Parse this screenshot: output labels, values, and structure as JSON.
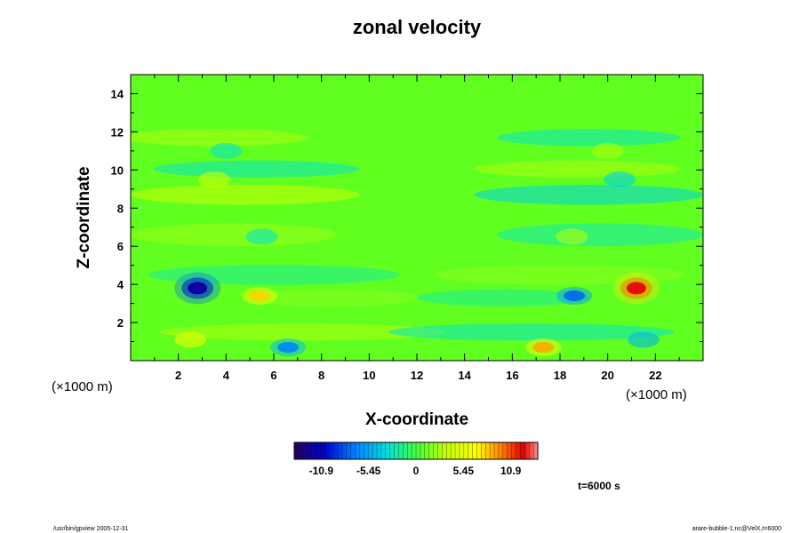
{
  "chart_data": {
    "type": "heatmap",
    "title": "zonal velocity",
    "xlabel": "X-coordinate",
    "ylabel": "Z-coordinate",
    "x_unit": "(×1000 m)",
    "y_unit": "(×1000 m)",
    "xlim": [
      0,
      24
    ],
    "ylim": [
      0,
      15
    ],
    "x_ticks": [
      2,
      4,
      6,
      8,
      10,
      12,
      14,
      16,
      18,
      20,
      22
    ],
    "y_ticks": [
      2,
      4,
      6,
      8,
      10,
      12,
      14
    ],
    "grid": false,
    "colorbar": {
      "range": [
        -14,
        14
      ],
      "tick_values": [
        -10.9,
        -5.45,
        0,
        5.45,
        10.9
      ],
      "tick_labels": [
        "-10.9",
        "-5.45",
        "0",
        "5.45",
        "10.9"
      ]
    },
    "features": [
      {
        "x": 2.8,
        "z": 3.8,
        "value": -12
      },
      {
        "x": 21.2,
        "z": 3.8,
        "value": 12
      },
      {
        "x": 5.4,
        "z": 3.4,
        "value": 8
      },
      {
        "x": 18.6,
        "z": 3.4,
        "value": -8
      },
      {
        "x": 2.5,
        "z": 1.1,
        "value": 6
      },
      {
        "x": 21.5,
        "z": 1.1,
        "value": -5
      },
      {
        "x": 6.6,
        "z": 0.7,
        "value": -7
      },
      {
        "x": 17.3,
        "z": 0.7,
        "value": 9
      },
      {
        "x": 3.5,
        "z": 9.5,
        "value": 4
      },
      {
        "x": 20.5,
        "z": 9.5,
        "value": -4
      },
      {
        "x": 4.0,
        "z": 11.0,
        "value": -3
      },
      {
        "x": 20.0,
        "z": 11.0,
        "value": 3
      },
      {
        "x": 5.5,
        "z": 6.5,
        "value": -3
      },
      {
        "x": 18.5,
        "z": 6.5,
        "value": 3
      }
    ],
    "time_label": "t=6000 s"
  },
  "footer": {
    "left": "/usr/bin/gpview 2005-12-31",
    "right": "arare-bubble-1.nc@VelX,t=6000"
  }
}
